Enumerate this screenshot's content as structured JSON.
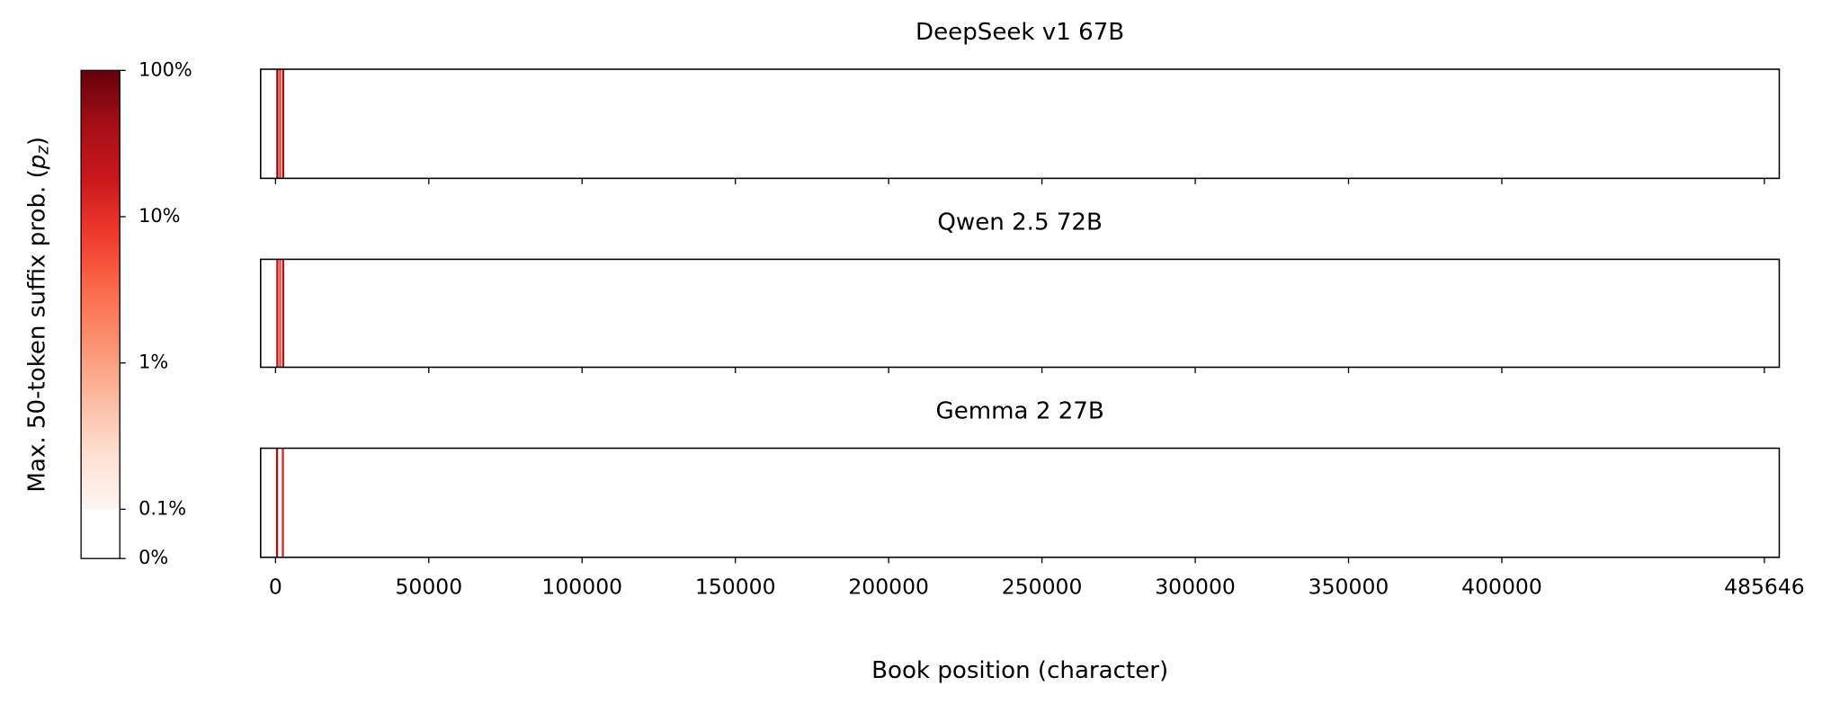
{
  "chart_data": {
    "type": "strip",
    "xlabel": "Book position (character)",
    "xlim": [
      -4856,
      490502
    ],
    "xticks": [
      0,
      50000,
      100000,
      150000,
      200000,
      250000,
      300000,
      350000,
      400000,
      485646
    ],
    "panels": [
      {
        "title": "DeepSeek v1 67B",
        "x": [
          600,
          1500,
          2500
        ],
        "values": [
          60,
          8,
          45
        ]
      },
      {
        "title": "Qwen 2.5 72B",
        "x": [
          600,
          1500,
          2500
        ],
        "values": [
          25,
          6,
          30
        ]
      },
      {
        "title": "Gemma 2 27B",
        "x": [
          500,
          2400
        ],
        "values": [
          40,
          12
        ]
      }
    ],
    "colorbar": {
      "label": "Max. 50-token suffix prob. (p_z)",
      "colormap": "Reds",
      "scale": "symlog",
      "linthresh": 0.1,
      "clim": [
        0,
        100
      ],
      "ticks": [
        {
          "value": 0,
          "label": "0%"
        },
        {
          "value": 0.1,
          "label": "0.1%"
        },
        {
          "value": 1,
          "label": "1%"
        },
        {
          "value": 10,
          "label": "10%"
        },
        {
          "value": 100,
          "label": "100%"
        }
      ]
    }
  }
}
